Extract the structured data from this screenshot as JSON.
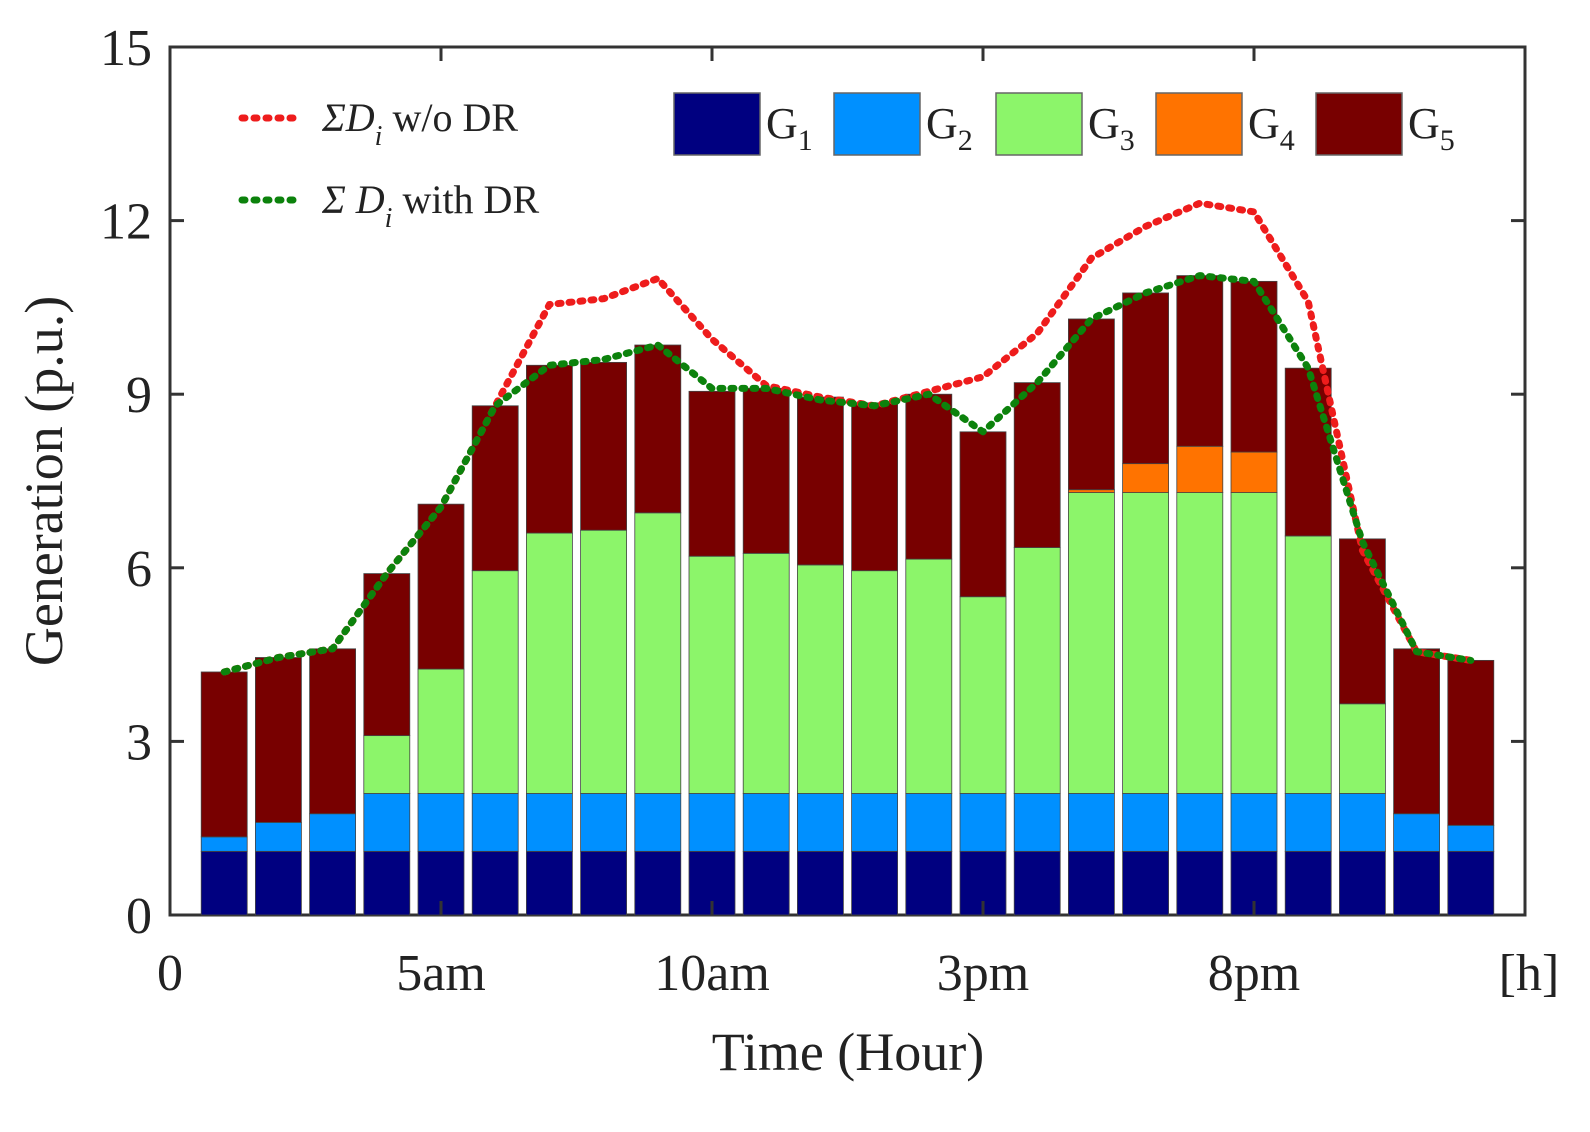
{
  "chart_data": {
    "type": "stacked-bar-with-lines",
    "xlabel": "Time (Hour)",
    "ylabel": "Generation (p.u.)",
    "ylim": [
      0,
      15
    ],
    "xlim": [
      0,
      25
    ],
    "y_ticks": [
      0,
      3,
      6,
      9,
      12,
      15
    ],
    "x_ticks": [
      {
        "value": 0,
        "label": "0"
      },
      {
        "value": 5,
        "label": "5am"
      },
      {
        "value": 10,
        "label": "10am"
      },
      {
        "value": 15,
        "label": "3pm"
      },
      {
        "value": 20,
        "label": "8pm"
      }
    ],
    "x_unit_label": "[h]",
    "hours": [
      1,
      2,
      3,
      4,
      5,
      6,
      7,
      8,
      9,
      10,
      11,
      12,
      13,
      14,
      15,
      16,
      17,
      18,
      19,
      20,
      21,
      22,
      23,
      24
    ],
    "series": [
      {
        "name": "G",
        "sub": "1",
        "color": "#000080",
        "values": [
          1.1,
          1.1,
          1.1,
          1.1,
          1.1,
          1.1,
          1.1,
          1.1,
          1.1,
          1.1,
          1.1,
          1.1,
          1.1,
          1.1,
          1.1,
          1.1,
          1.1,
          1.1,
          1.1,
          1.1,
          1.1,
          1.1,
          1.1,
          1.1
        ]
      },
      {
        "name": "G",
        "sub": "2",
        "color": "#0090ff",
        "values": [
          0.25,
          0.5,
          0.65,
          1.0,
          1.0,
          1.0,
          1.0,
          1.0,
          1.0,
          1.0,
          1.0,
          1.0,
          1.0,
          1.0,
          1.0,
          1.0,
          1.0,
          1.0,
          1.0,
          1.0,
          1.0,
          1.0,
          0.65,
          0.45
        ]
      },
      {
        "name": "G",
        "sub": "3",
        "color": "#8cf56a",
        "values": [
          0,
          0,
          0,
          1.0,
          2.15,
          3.85,
          4.5,
          4.55,
          4.85,
          4.1,
          4.15,
          3.95,
          3.85,
          4.05,
          3.4,
          4.25,
          5.2,
          5.2,
          5.2,
          5.2,
          4.45,
          1.55,
          0,
          0
        ]
      },
      {
        "name": "G",
        "sub": "4",
        "color": "#ff7300",
        "values": [
          0,
          0,
          0,
          0,
          0,
          0,
          0,
          0,
          0,
          0,
          0,
          0,
          0,
          0,
          0,
          0,
          0.05,
          0.5,
          0.8,
          0.7,
          0,
          0,
          0,
          0
        ]
      },
      {
        "name": "G",
        "sub": "5",
        "color": "#780000",
        "values": [
          2.85,
          2.85,
          2.85,
          2.8,
          2.85,
          2.85,
          2.9,
          2.9,
          2.9,
          2.85,
          2.85,
          2.9,
          2.9,
          2.85,
          2.85,
          2.85,
          2.95,
          2.95,
          2.95,
          2.95,
          2.9,
          2.85,
          2.85,
          2.85
        ]
      }
    ],
    "lines": [
      {
        "label_pre": "ΣD",
        "label_sub": "i",
        "label_post": " w/o DR",
        "color": "#ee1c1c",
        "values": [
          4.2,
          4.45,
          4.6,
          5.9,
          7.05,
          8.8,
          10.55,
          10.65,
          11.0,
          9.95,
          9.15,
          8.95,
          8.8,
          9.05,
          9.3,
          10.05,
          11.35,
          11.9,
          12.3,
          12.15,
          10.6,
          6.3,
          4.55,
          4.4
        ]
      },
      {
        "label_pre": "Σ  D",
        "label_sub": "i",
        "label_post": "  with DR",
        "color": "#0c820c",
        "values": [
          4.2,
          4.45,
          4.6,
          5.9,
          7.05,
          8.8,
          9.5,
          9.6,
          9.85,
          9.1,
          9.1,
          8.9,
          8.8,
          9.0,
          8.35,
          9.2,
          10.3,
          10.75,
          11.05,
          10.95,
          9.45,
          6.45,
          4.55,
          4.4
        ]
      }
    ]
  }
}
